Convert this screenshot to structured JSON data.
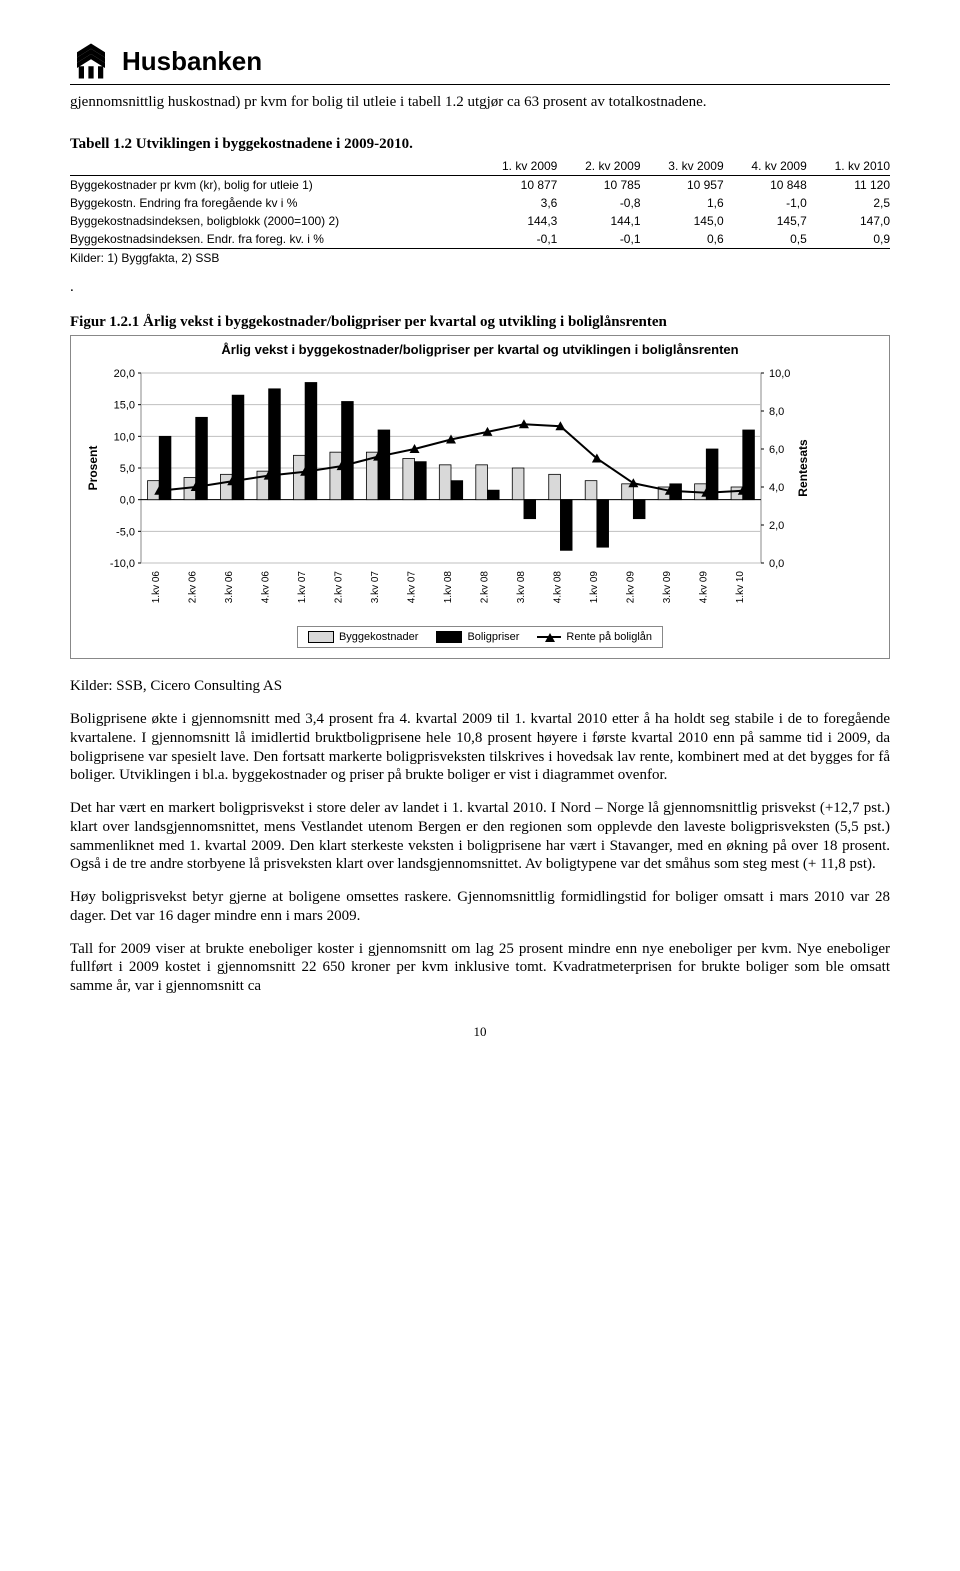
{
  "header": {
    "brand": "Husbanken"
  },
  "intro_para": "gjennomsnittlig huskostnad) pr kvm for bolig til utleie i tabell 1.2 utgjør ca 63 prosent av totalkostnadene.",
  "table": {
    "title": "Tabell 1.2 Utviklingen i byggekostnadene i 2009-2010.",
    "columns": [
      "",
      "1. kv 2009",
      "2. kv 2009",
      "3. kv 2009",
      "4. kv 2009",
      "1. kv 2010"
    ],
    "rows": [
      [
        "Byggekostnader pr kvm (kr), bolig for utleie 1)",
        "10 877",
        "10 785",
        "10 957",
        "10 848",
        "11 120"
      ],
      [
        "Byggekostn. Endring fra foregående kv i %",
        "3,6",
        "-0,8",
        "1,6",
        "-1,0",
        "2,5"
      ],
      [
        "Byggekostnadsindeksen, boligblokk (2000=100) 2)",
        "144,3",
        "144,1",
        "145,0",
        "145,7",
        "147,0"
      ],
      [
        "Byggekostnadsindeksen. Endr. fra foreg. kv. i %",
        "-0,1",
        "-0,1",
        "0,6",
        "0,5",
        "0,9"
      ]
    ],
    "source": "Kilder: 1) Byggfakta, 2) SSB"
  },
  "figure": {
    "caption_prefix": ".",
    "caption": "Figur 1.2.1 Årlig vekst i byggekostnader/boligpriser per kvartal og utvikling i boliglånsrenten",
    "title": "Årlig vekst i byggekostnader/boligpriser per kvartal og utviklingen i boliglånsrenten",
    "legend": {
      "bygge": "Byggekostnader",
      "bolig": "Boligpriser",
      "rente": "Rente på boliglån"
    },
    "source": "Kilder: SSB, Cicero Consulting AS"
  },
  "chart": {
    "type": "bar+line",
    "background_color": "#ffffff",
    "grid_color": "#bfbfbf",
    "bar_colors": {
      "bygge": "#d9d9d9",
      "bolig": "#000000"
    },
    "bar_border": "#000000",
    "line_color": "#000000",
    "marker": "triangle",
    "yleft": {
      "label": "Prosent",
      "min": -10,
      "max": 20,
      "step": 5,
      "ticks": [
        "-10,0",
        "-5,0",
        "0,0",
        "5,0",
        "10,0",
        "15,0",
        "20,0"
      ],
      "fontsize": 11
    },
    "yright": {
      "label": "Rentesats",
      "min": 0,
      "max": 10,
      "step": 2,
      "ticks": [
        "0,0",
        "2,0",
        "4,0",
        "6,0",
        "8,0",
        "10,0"
      ],
      "fontsize": 11
    },
    "categories": [
      "1.kv 06",
      "2.kv 06",
      "3.kv 06",
      "4.kv 06",
      "1.kv 07",
      "2.kv 07",
      "3.kv 07",
      "4.kv 07",
      "1.kv 08",
      "2.kv 08",
      "3.kv 08",
      "4.kv 08",
      "1.kv 09",
      "2.kv 09",
      "3.kv 09",
      "4.kv 09",
      "1.kv 10"
    ],
    "bygge": [
      3.0,
      3.5,
      4.0,
      4.5,
      7.0,
      7.5,
      7.5,
      6.5,
      5.5,
      5.5,
      5.0,
      4.0,
      3.0,
      2.5,
      2.0,
      2.5,
      2.0
    ],
    "bolig": [
      10.0,
      13.0,
      16.5,
      17.5,
      18.5,
      15.5,
      11.0,
      6.0,
      3.0,
      1.5,
      -3.0,
      -8.0,
      -7.5,
      -3.0,
      2.5,
      8.0,
      11.0
    ],
    "rente": [
      3.8,
      4.0,
      4.3,
      4.6,
      4.8,
      5.1,
      5.6,
      6.0,
      6.5,
      6.9,
      7.3,
      7.2,
      5.5,
      4.2,
      3.8,
      3.7,
      3.8
    ],
    "bar_width": 0.32
  },
  "body": {
    "p1": "Boligprisene økte i gjennomsnitt med 3,4 prosent fra 4. kvartal 2009 til 1. kvartal 2010 etter å ha holdt seg stabile i de to foregående kvartalene. I gjennomsnitt lå imidlertid bruktboligprisene hele 10,8 prosent høyere i første kvartal 2010 enn på samme tid i 2009, da boligprisene var spesielt lave. Den fortsatt markerte boligprisveksten tilskrives i hovedsak lav rente, kombinert med at det bygges for få boliger. Utviklingen i bl.a. byggekostnader og priser på brukte boliger er vist i diagrammet ovenfor.",
    "p2": "Det har vært en markert boligprisvekst i store deler av landet i 1. kvartal 2010.  I Nord – Norge lå gjennomsnittlig prisvekst (+12,7 pst.) klart over landsgjennomsnittet, mens Vestlandet utenom Bergen er den regionen som opplevde den laveste boligprisveksten (5,5 pst.) sammenliknet med 1. kvartal 2009. Den klart sterkeste veksten i boligprisene har vært i Stavanger, med en økning på over 18 prosent. Også i de tre andre storbyene lå prisveksten klart over landsgjennomsnittet. Av boligtypene var det småhus som steg mest (+ 11,8 pst).",
    "p3": "Høy boligprisvekst betyr gjerne at boligene omsettes raskere. Gjennomsnittlig formidlingstid for boliger omsatt i mars 2010 var 28 dager. Det var 16 dager mindre enn i mars 2009.",
    "p4": "Tall for 2009 viser at brukte eneboliger koster i gjennomsnitt om lag 25 prosent mindre enn nye eneboliger per kvm. Nye eneboliger fullført i 2009 kostet i gjennomsnitt 22 650 kroner per kvm inklusive tomt. Kvadratmeterprisen for brukte boliger som ble omsatt samme år, var i gjennomsnitt ca"
  },
  "pagenum": "10"
}
